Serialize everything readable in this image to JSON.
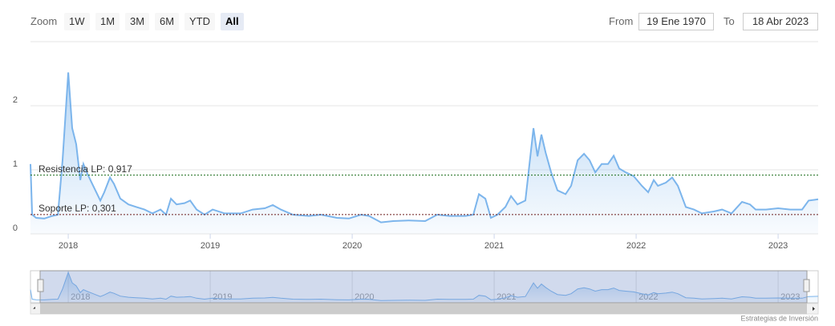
{
  "chart_data": {
    "type": "area",
    "x": [
      2017.734,
      2017.746,
      2017.774,
      2017.831,
      2017.887,
      2017.927,
      2017.96,
      2018.0,
      2018.028,
      2018.056,
      2018.085,
      2018.107,
      2018.13,
      2018.169,
      2018.226,
      2018.254,
      2018.294,
      2018.322,
      2018.367,
      2018.424,
      2018.48,
      2018.537,
      2018.593,
      2018.65,
      2018.689,
      2018.723,
      2018.763,
      2018.819,
      2018.859,
      2018.904,
      2018.96,
      2019.017,
      2019.102,
      2019.215,
      2019.299,
      2019.384,
      2019.441,
      2019.497,
      2019.582,
      2019.695,
      2019.78,
      2019.893,
      2019.977,
      2020.062,
      2020.119,
      2020.203,
      2020.288,
      2020.401,
      2020.514,
      2020.599,
      2020.684,
      2020.797,
      2020.853,
      2020.893,
      2020.938,
      2020.977,
      2021.023,
      2021.079,
      2021.119,
      2021.164,
      2021.22,
      2021.277,
      2021.305,
      2021.333,
      2021.362,
      2021.401,
      2021.446,
      2021.503,
      2021.542,
      2021.588,
      2021.633,
      2021.672,
      2021.712,
      2021.757,
      2021.802,
      2021.842,
      2021.881,
      2021.927,
      2021.983,
      2022.04,
      2022.085,
      2022.124,
      2022.153,
      2022.209,
      2022.254,
      2022.294,
      2022.35,
      2022.407,
      2022.463,
      2022.548,
      2022.605,
      2022.672,
      2022.746,
      2022.802,
      2022.842,
      2022.915,
      2023.0,
      2023.085,
      2023.169,
      2023.215,
      2023.282
    ],
    "values": [
      1.09,
      0.3,
      0.25,
      0.24,
      0.28,
      0.3,
      1.15,
      2.52,
      1.65,
      1.4,
      0.84,
      1.09,
      0.96,
      0.78,
      0.52,
      0.65,
      0.88,
      0.78,
      0.55,
      0.46,
      0.42,
      0.38,
      0.32,
      0.38,
      0.3,
      0.55,
      0.46,
      0.48,
      0.52,
      0.38,
      0.3,
      0.38,
      0.32,
      0.32,
      0.38,
      0.4,
      0.45,
      0.38,
      0.3,
      0.28,
      0.3,
      0.25,
      0.24,
      0.3,
      0.28,
      0.18,
      0.2,
      0.21,
      0.2,
      0.3,
      0.28,
      0.28,
      0.3,
      0.62,
      0.55,
      0.25,
      0.3,
      0.42,
      0.59,
      0.46,
      0.52,
      1.65,
      1.21,
      1.55,
      1.27,
      0.96,
      0.68,
      0.62,
      0.75,
      1.15,
      1.25,
      1.15,
      0.96,
      1.09,
      1.09,
      1.22,
      1.02,
      0.96,
      0.9,
      0.75,
      0.65,
      0.84,
      0.75,
      0.8,
      0.88,
      0.75,
      0.42,
      0.38,
      0.32,
      0.35,
      0.38,
      0.32,
      0.5,
      0.46,
      0.38,
      0.38,
      0.4,
      0.38,
      0.38,
      0.52,
      0.54
    ],
    "color": "#7cb5ec",
    "xlim": [
      2017.734,
      2023.282
    ],
    "xticks": [
      2018,
      2019,
      2020,
      2021,
      2022,
      2023
    ],
    "ylim": [
      0,
      3
    ],
    "yticks": [
      0,
      1,
      2
    ],
    "grid": true,
    "plot_lines": [
      {
        "value": 0.917,
        "label": "Resistencia LP: 0,917",
        "color": "#1b6e1b"
      },
      {
        "value": 0.301,
        "label": "Soporte LP: 0,301",
        "color": "#6b1a1a"
      }
    ]
  },
  "range_selector": {
    "label": "Zoom",
    "buttons": [
      "1W",
      "1M",
      "3M",
      "6M",
      "YTD",
      "All"
    ],
    "selected": 5,
    "from_label": "From",
    "from": "19 Ene 1970",
    "to_label": "To",
    "to": "18 Abr 2023"
  },
  "credits": "Estrategias de Inversión"
}
